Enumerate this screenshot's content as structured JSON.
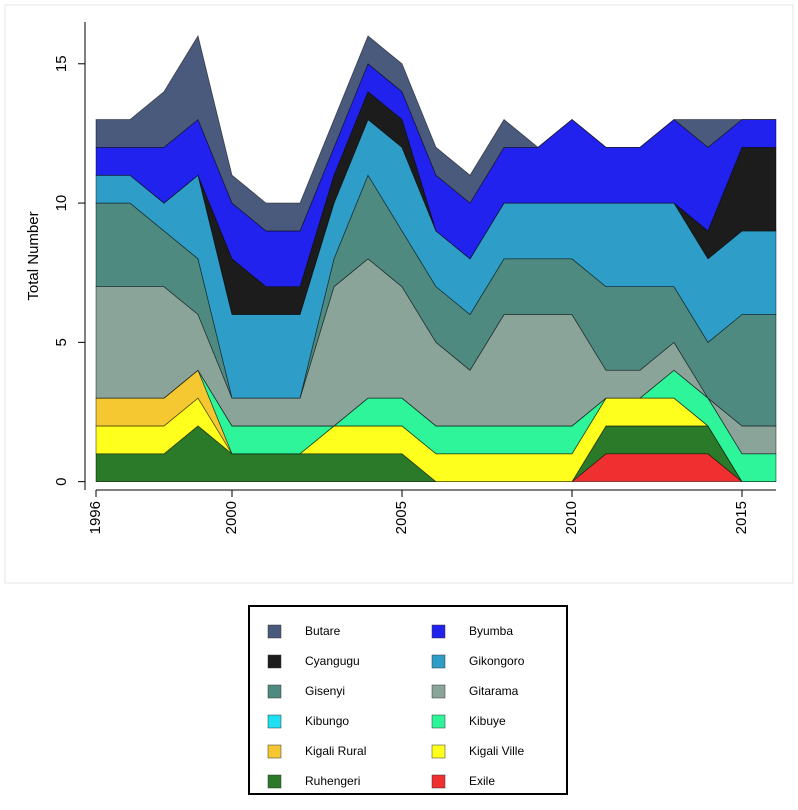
{
  "chart_data": {
    "type": "stacked-area",
    "y_label": "Total Number",
    "x": [
      1996,
      1997,
      1998,
      1999,
      2000,
      2001,
      2002,
      2003,
      2004,
      2005,
      2006,
      2007,
      2008,
      2009,
      2010,
      2011,
      2012,
      2013,
      2014,
      2015,
      2016
    ],
    "xlim": [
      1996,
      2016
    ],
    "xticks": [
      1996,
      2000,
      2005,
      2010,
      2015
    ],
    "ylim": [
      -0.3,
      16.5
    ],
    "yticks": [
      0,
      5,
      10,
      15
    ],
    "series": [
      {
        "name": "Butare",
        "color": "#4a5a7c",
        "values": [
          1,
          1,
          2,
          3,
          1,
          1,
          1,
          1,
          1,
          1,
          1,
          1,
          1,
          0,
          0,
          0,
          0,
          0,
          1,
          0,
          0
        ]
      },
      {
        "name": "Byumba",
        "color": "#2222ee",
        "values": [
          1,
          1,
          2,
          2,
          2,
          2,
          2,
          1,
          1,
          1,
          2,
          2,
          2,
          2,
          3,
          2,
          2,
          3,
          3,
          1,
          1
        ]
      },
      {
        "name": "Cyangugu",
        "color": "#1c1c1c",
        "values": [
          0,
          0,
          0,
          0,
          2,
          1,
          1,
          1,
          1,
          1,
          0,
          0,
          0,
          0,
          0,
          0,
          0,
          0,
          1,
          3,
          3
        ]
      },
      {
        "name": "Gikongoro",
        "color": "#2e9ec8",
        "values": [
          1,
          1,
          1,
          3,
          3,
          3,
          3,
          2,
          2,
          3,
          2,
          2,
          2,
          2,
          2,
          3,
          3,
          3,
          3,
          3,
          3
        ]
      },
      {
        "name": "Gisenyi",
        "color": "#4f8a80",
        "values": [
          3,
          3,
          2,
          2,
          0,
          0,
          0,
          1,
          3,
          2,
          2,
          2,
          2,
          2,
          2,
          3,
          3,
          2,
          2,
          4,
          4
        ]
      },
      {
        "name": "Gitarama",
        "color": "#8aa49a",
        "values": [
          4,
          4,
          4,
          2,
          1,
          1,
          1,
          5,
          5,
          4,
          3,
          2,
          4,
          4,
          4,
          1,
          1,
          1,
          0,
          1,
          1
        ]
      },
      {
        "name": "Kibungo",
        "color": "#1ee0f0",
        "values": [
          0,
          0,
          0,
          0,
          0,
          0,
          0,
          0,
          0,
          0,
          0,
          0,
          0,
          0,
          0,
          0,
          0,
          0,
          0,
          0,
          0
        ]
      },
      {
        "name": "Kibuye",
        "color": "#2ef59a",
        "values": [
          0,
          0,
          0,
          0,
          1,
          1,
          1,
          0,
          1,
          1,
          1,
          1,
          1,
          1,
          1,
          0,
          0,
          1,
          1,
          1,
          1
        ]
      },
      {
        "name": "Kigali Rural",
        "color": "#f5c832",
        "values": [
          1,
          1,
          1,
          1,
          0,
          0,
          0,
          0,
          0,
          0,
          0,
          0,
          0,
          0,
          0,
          0,
          0,
          0,
          0,
          0,
          0
        ]
      },
      {
        "name": "Kigali Ville",
        "color": "#ffff1e",
        "values": [
          1,
          1,
          1,
          1,
          0,
          0,
          0,
          1,
          1,
          1,
          1,
          1,
          1,
          1,
          1,
          1,
          1,
          1,
          0,
          0,
          0
        ]
      },
      {
        "name": "Ruhengeri",
        "color": "#2a7a2a",
        "values": [
          1,
          1,
          1,
          2,
          1,
          1,
          1,
          1,
          1,
          1,
          0,
          0,
          0,
          0,
          0,
          1,
          1,
          1,
          1,
          0,
          0
        ]
      },
      {
        "name": "Exile",
        "color": "#f03030",
        "values": [
          0,
          0,
          0,
          0,
          0,
          0,
          0,
          0,
          0,
          0,
          0,
          0,
          0,
          0,
          0,
          1,
          1,
          1,
          1,
          0,
          0
        ]
      }
    ]
  }
}
